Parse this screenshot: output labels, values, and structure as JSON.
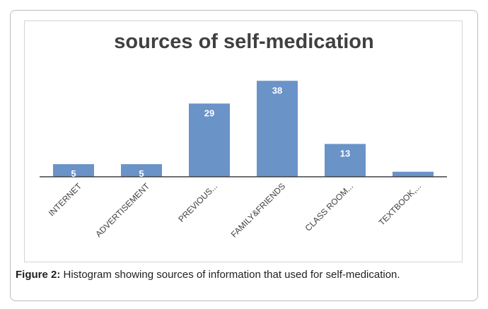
{
  "chart_data": {
    "type": "bar",
    "title": "sources of self-medication",
    "categories": [
      "INTERNET",
      "ADVERTISEMENT",
      "PREVIOUS...",
      "FAMILY&FRIENDS",
      "CLASS ROOM...",
      "TEXTBOOK,..."
    ],
    "values": [
      5,
      5,
      29,
      38,
      13,
      2
    ],
    "data_labels": [
      "5",
      "5",
      "29",
      "38",
      "13",
      ""
    ],
    "ylim": [
      0,
      42
    ],
    "grid": false,
    "legend": "none",
    "bar_color": "#6a93c8",
    "axis_color": "#404040",
    "label_color": "#ffffff",
    "tick_color": "#404040"
  },
  "caption": {
    "label": "Figure 2:",
    "text": " Histogram showing sources of information that used for self-medication."
  }
}
